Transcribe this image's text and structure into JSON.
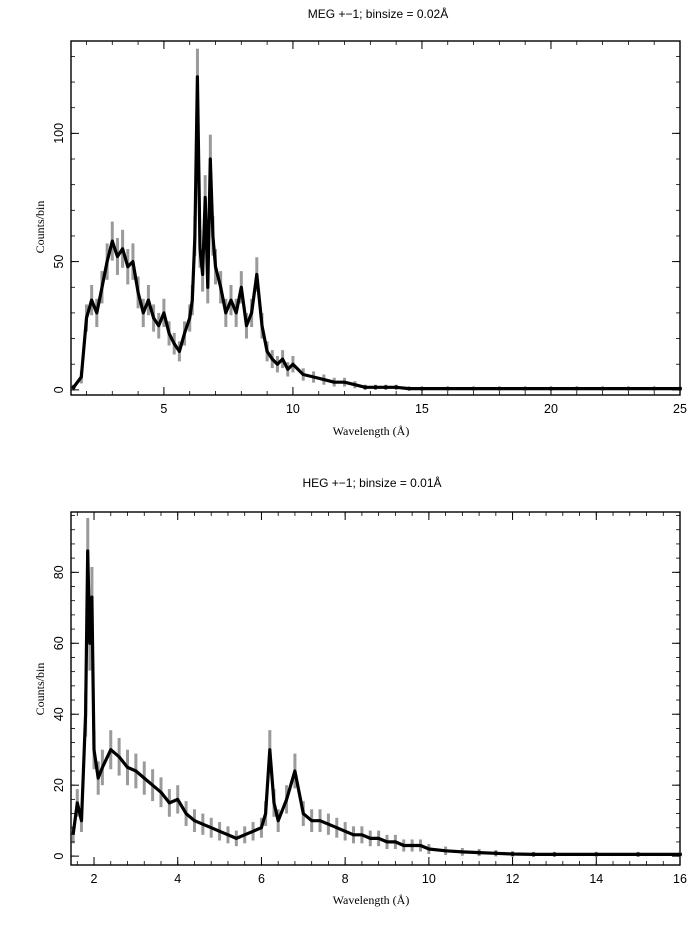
{
  "chart_data": [
    {
      "type": "line",
      "title": "MEG +−1; binsize = 0.02Å",
      "xlabel": "Wavelength (Å)",
      "ylabel": "Counts/bin",
      "xlim": [
        1.4,
        25
      ],
      "ylim": [
        -2,
        136
      ],
      "x_ticks": [
        5,
        10,
        15,
        20,
        25
      ],
      "y_ticks": [
        0,
        50,
        100
      ],
      "grid": false,
      "series_style": {
        "line_color": "#000000",
        "error_color": "#9a9a9a"
      },
      "x": [
        1.5,
        1.8,
        2.0,
        2.2,
        2.4,
        2.6,
        2.8,
        3.0,
        3.2,
        3.4,
        3.6,
        3.8,
        4.0,
        4.2,
        4.4,
        4.6,
        4.8,
        5.0,
        5.2,
        5.4,
        5.6,
        5.8,
        6.0,
        6.1,
        6.2,
        6.3,
        6.4,
        6.5,
        6.6,
        6.7,
        6.8,
        6.9,
        7.0,
        7.2,
        7.4,
        7.6,
        7.8,
        8.0,
        8.2,
        8.4,
        8.6,
        8.8,
        9.0,
        9.2,
        9.4,
        9.6,
        9.8,
        10.0,
        10.4,
        10.8,
        11.2,
        11.6,
        12.0,
        12.4,
        12.8,
        13.2,
        13.6,
        14.0,
        14.5,
        15.0,
        16.0,
        17.0,
        18.0,
        19.0,
        20.0,
        21.0,
        22.0,
        23.0,
        24.0,
        25.0
      ],
      "y": [
        1,
        5,
        28,
        35,
        30,
        40,
        50,
        58,
        52,
        55,
        48,
        50,
        38,
        30,
        35,
        28,
        25,
        30,
        22,
        18,
        15,
        22,
        28,
        35,
        60,
        122,
        55,
        45,
        75,
        40,
        90,
        60,
        48,
        40,
        30,
        35,
        30,
        40,
        25,
        30,
        45,
        25,
        15,
        12,
        10,
        12,
        8,
        10,
        6,
        5,
        4,
        3,
        3,
        2,
        1,
        1,
        1,
        1,
        0.5,
        0.5,
        0.5,
        0.5,
        0.5,
        0.5,
        0.5,
        0.5,
        0.5,
        0.5,
        0.5,
        0.5
      ],
      "errors": [
        1,
        2.5,
        5.3,
        5.9,
        5.5,
        6.3,
        7.1,
        7.6,
        7.2,
        7.4,
        6.9,
        7.1,
        6.2,
        5.5,
        5.9,
        5.3,
        5,
        5.5,
        4.7,
        4.2,
        3.9,
        4.7,
        5.3,
        5.9,
        7.7,
        11,
        7.4,
        6.7,
        8.7,
        6.3,
        9.5,
        7.7,
        6.9,
        6.3,
        5.5,
        5.9,
        5.5,
        6.3,
        5,
        5.5,
        6.7,
        5,
        3.9,
        3.5,
        3.2,
        3.5,
        2.8,
        3.2,
        2.4,
        2.2,
        2,
        1.7,
        1.7,
        1.4,
        1,
        1,
        1,
        1,
        0.7,
        0.7,
        0.7,
        0.7,
        0.7,
        0.7,
        0.7,
        0.7,
        0.7,
        0.7,
        0.7,
        0.7
      ]
    },
    {
      "type": "line",
      "title": "HEG +−1; binsize = 0.01Å",
      "xlabel": "Wavelength (Å)",
      "ylabel": "Counts/bin",
      "xlim": [
        1.45,
        16
      ],
      "ylim": [
        -2.5,
        97
      ],
      "x_ticks": [
        2,
        4,
        6,
        8,
        10,
        12,
        14,
        16
      ],
      "y_ticks": [
        0,
        20,
        40,
        60,
        80
      ],
      "grid": false,
      "series_style": {
        "line_color": "#000000",
        "error_color": "#9a9a9a"
      },
      "x": [
        1.5,
        1.6,
        1.7,
        1.8,
        1.85,
        1.9,
        1.95,
        2.0,
        2.1,
        2.2,
        2.4,
        2.6,
        2.8,
        3.0,
        3.2,
        3.4,
        3.6,
        3.8,
        4.0,
        4.2,
        4.4,
        4.6,
        4.8,
        5.0,
        5.2,
        5.4,
        5.6,
        5.8,
        6.0,
        6.1,
        6.2,
        6.3,
        6.4,
        6.6,
        6.8,
        7.0,
        7.2,
        7.4,
        7.6,
        7.8,
        8.0,
        8.2,
        8.4,
        8.6,
        8.8,
        9.0,
        9.2,
        9.4,
        9.6,
        9.8,
        10.0,
        10.4,
        10.8,
        11.2,
        11.6,
        12.0,
        12.5,
        13.0,
        14.0,
        15.0,
        16.0
      ],
      "y": [
        6,
        15,
        10,
        40,
        86,
        60,
        73,
        30,
        22,
        25,
        30,
        28,
        25,
        24,
        22,
        20,
        18,
        15,
        16,
        12,
        10,
        9,
        8,
        7,
        6,
        5,
        6,
        7,
        8,
        12,
        30,
        15,
        10,
        16,
        24,
        12,
        10,
        10,
        9,
        8,
        7,
        6,
        6,
        5,
        5,
        4,
        4,
        3,
        3,
        3,
        2,
        1.5,
        1.2,
        1,
        0.8,
        0.6,
        0.5,
        0.5,
        0.5,
        0.5,
        0.5
      ],
      "errors": [
        2.4,
        3.9,
        3.2,
        6.3,
        9.3,
        7.7,
        8.5,
        5.5,
        4.7,
        5,
        5.5,
        5.3,
        5,
        4.9,
        4.7,
        4.5,
        4.2,
        3.9,
        4,
        3.5,
        3.2,
        3,
        2.8,
        2.6,
        2.4,
        2.2,
        2.4,
        2.6,
        2.8,
        3.5,
        5.5,
        3.9,
        3.2,
        4,
        4.9,
        3.5,
        3.2,
        3.2,
        3,
        2.8,
        2.6,
        2.4,
        2.4,
        2.2,
        2.2,
        2,
        2,
        1.7,
        1.7,
        1.7,
        1.4,
        1.2,
        1.1,
        1,
        0.9,
        0.8,
        0.7,
        0.7,
        0.7,
        0.7,
        0.7
      ]
    }
  ]
}
